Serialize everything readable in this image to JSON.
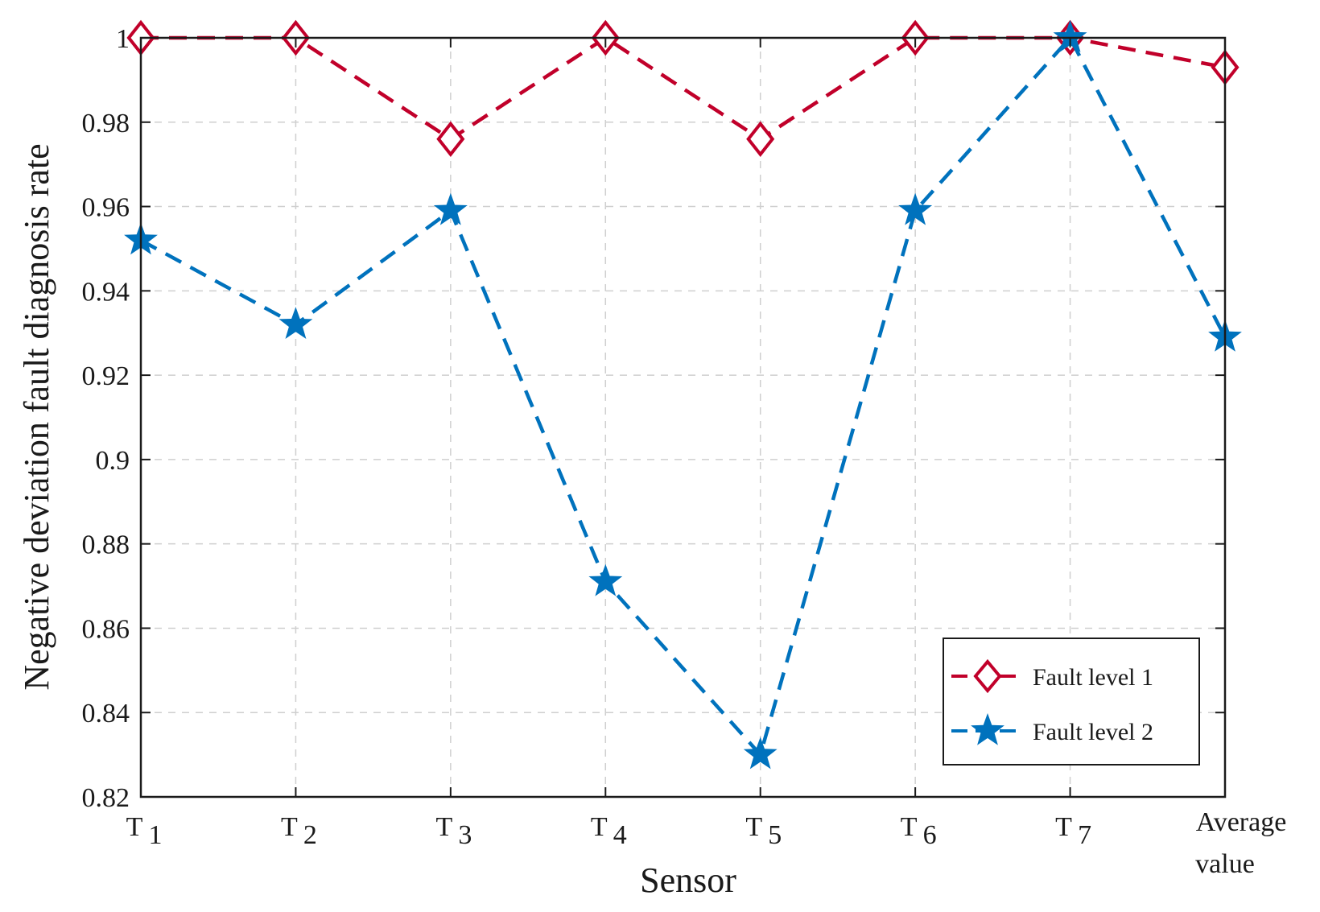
{
  "chart_data": {
    "type": "line",
    "xlabel": "Sensor",
    "ylabel": "Negative deviation fault diagnosis rate",
    "categories": [
      {
        "main": "T",
        "sub": "1"
      },
      {
        "main": "T",
        "sub": "2"
      },
      {
        "main": "T",
        "sub": "3"
      },
      {
        "main": "T",
        "sub": "4"
      },
      {
        "main": "T",
        "sub": "5"
      },
      {
        "main": "T",
        "sub": "6"
      },
      {
        "main": "T",
        "sub": "7"
      },
      {
        "main": "Average",
        "sub": "value"
      }
    ],
    "ylim": [
      0.82,
      1.0
    ],
    "yticks": [
      "0.82",
      "0.84",
      "0.86",
      "0.88",
      "0.9",
      "0.92",
      "0.94",
      "0.96",
      "0.98",
      "1"
    ],
    "grid": true,
    "legend_position": "bottom-right",
    "series": [
      {
        "name": "Fault level 1",
        "color": "#c1002a",
        "marker": "diamond",
        "line_style": "dashed",
        "values": [
          1.0,
          1.0,
          0.976,
          1.0,
          0.976,
          1.0,
          1.0,
          0.993
        ]
      },
      {
        "name": "Fault level 2",
        "color": "#0072bd",
        "marker": "star",
        "line_style": "dashed",
        "values": [
          0.952,
          0.932,
          0.959,
          0.871,
          0.83,
          0.959,
          1.0,
          0.929
        ]
      }
    ]
  }
}
